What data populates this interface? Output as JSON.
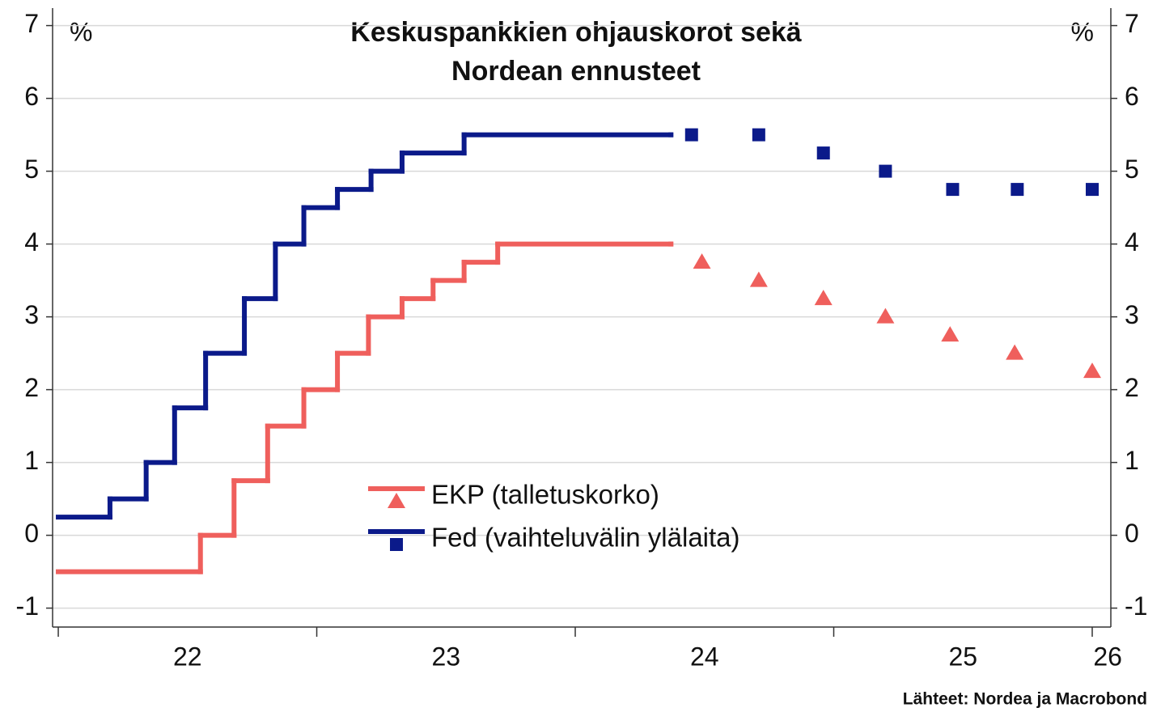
{
  "chart_data": {
    "type": "step",
    "title": [
      "Keskuspankkien ohjauskorot sekä",
      "Nordean ennusteet"
    ],
    "y_unit_left": "%",
    "y_unit_right": "%",
    "source": "Lähteet: Nordea ja Macrobond",
    "xlim": [
      21.978,
      26.072
    ],
    "xticks": [
      22,
      23,
      24,
      25,
      26
    ],
    "xtick_labels": [
      {
        "value": 22.5,
        "label": "22"
      },
      {
        "value": 23.5,
        "label": "23"
      },
      {
        "value": 24.5,
        "label": "24"
      },
      {
        "value": 25.5,
        "label": "25"
      },
      {
        "value": 26.06,
        "label": "26"
      }
    ],
    "ylim": [
      -1.26,
      7.24
    ],
    "yticks": [
      -1,
      0,
      1,
      2,
      3,
      4,
      5,
      6,
      7
    ],
    "grid": true,
    "series": [
      {
        "name": "EKP (talletuskorko)",
        "color": "#ef5f5c",
        "marker": "triangle",
        "x": [
          22.0,
          22.55,
          22.68,
          22.81,
          22.95,
          23.08,
          23.2,
          23.33,
          23.45,
          23.57,
          23.7,
          24.37
        ],
        "values": [
          -0.5,
          0,
          0.75,
          1.5,
          2.0,
          2.5,
          3.0,
          3.25,
          3.5,
          3.75,
          4.0,
          4.0
        ],
        "forecast_x": [
          24.49,
          24.71,
          24.96,
          25.2,
          25.45,
          25.7,
          26.0
        ],
        "forecast_values": [
          3.75,
          3.5,
          3.25,
          3.0,
          2.75,
          2.5,
          2.25
        ]
      },
      {
        "name": "Fed (vaihteluvälin ylälaita)",
        "color": "#0b1a8a",
        "marker": "square",
        "x": [
          22.0,
          22.2,
          22.34,
          22.45,
          22.57,
          22.72,
          22.84,
          22.95,
          23.08,
          23.21,
          23.33,
          23.57,
          24.37
        ],
        "values": [
          0.25,
          0.5,
          1.0,
          1.75,
          2.5,
          3.25,
          4.0,
          4.5,
          4.75,
          5.0,
          5.25,
          5.5,
          5.5
        ],
        "forecast_x": [
          24.45,
          24.71,
          24.96,
          25.2,
          25.46,
          25.71,
          26.0
        ],
        "forecast_values": [
          5.5,
          5.5,
          5.25,
          5.0,
          4.75,
          4.75,
          4.75
        ]
      }
    ]
  }
}
